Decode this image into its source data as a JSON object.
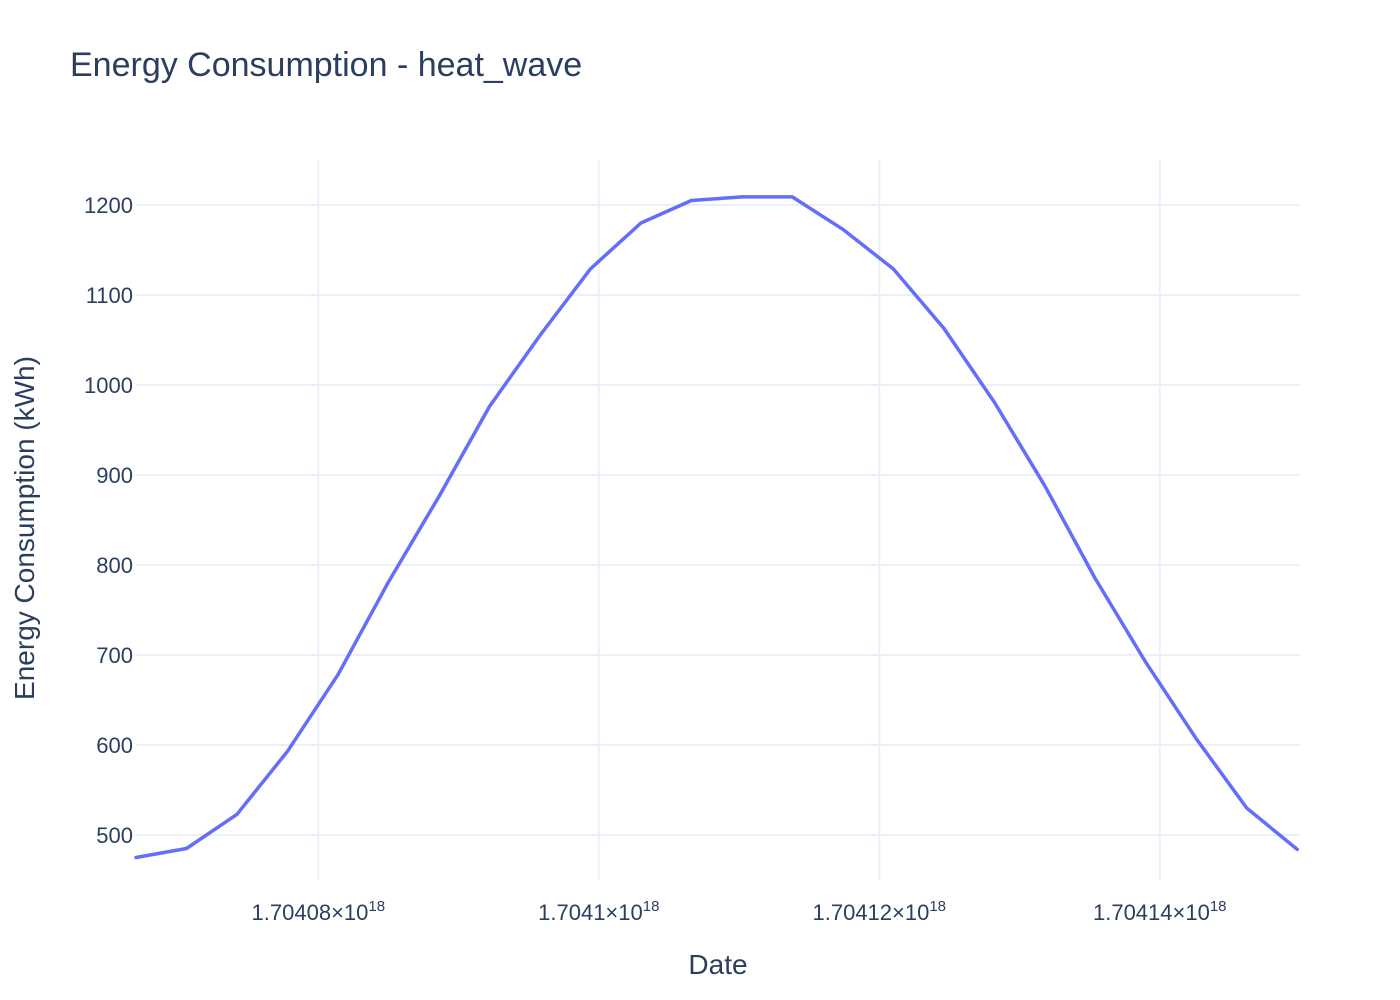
{
  "chart_data": {
    "type": "line",
    "title": "Energy Consumption - heat_wave",
    "xlabel": "Date",
    "ylabel": "Energy Consumption (kWh)",
    "x_tick_labels": [
      {
        "value": 1.70408e+18,
        "mantissa": "1.70408",
        "exponent": "18"
      },
      {
        "value": 1.7041e+18,
        "mantissa": "1.7041",
        "exponent": "18"
      },
      {
        "value": 1.70412e+18,
        "mantissa": "1.70412",
        "exponent": "18"
      },
      {
        "value": 1.70414e+18,
        "mantissa": "1.70414",
        "exponent": "18"
      }
    ],
    "y_ticks": [
      500,
      600,
      700,
      800,
      900,
      1000,
      1100,
      1200
    ],
    "xlim": [
      1.704067e+18,
      1.70415e+18
    ],
    "ylim": [
      450,
      1250
    ],
    "grid": true,
    "series": [
      {
        "color": "#636efa",
        "x": [
          1.704067e+18,
          1.7040706e+18,
          1.7040742e+18,
          1.7040778e+18,
          1.7040814e+18,
          1.704085e+18,
          1.7040886e+18,
          1.7040922e+18,
          1.7040958e+18,
          1.7040994e+18,
          1.704103e+18,
          1.7041066e+18,
          1.7041102e+18,
          1.7041138e+18,
          1.7041174e+18,
          1.704121e+18,
          1.7041246e+18,
          1.7041282e+18,
          1.7041318e+18,
          1.7041354e+18,
          1.704139e+18,
          1.7041426e+18,
          1.7041462e+18,
          1.7041498e+18
        ],
        "y": [
          475,
          485,
          523,
          593,
          678,
          781,
          876,
          976,
          1055,
          1129,
          1180,
          1205,
          1209,
          1209,
          1173,
          1129,
          1063,
          981,
          888,
          785,
          692,
          607,
          530,
          484
        ]
      }
    ]
  }
}
